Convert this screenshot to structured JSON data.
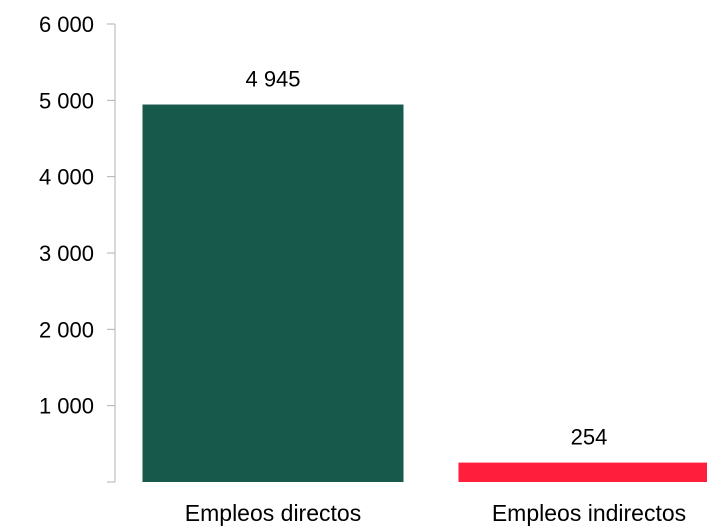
{
  "chart_data": {
    "type": "bar",
    "categories": [
      "Empleos directos",
      "Empleos indirectos"
    ],
    "values": [
      4945,
      254
    ],
    "data_labels": [
      "4 945",
      "254"
    ],
    "title": "",
    "xlabel": "",
    "ylabel": "",
    "ylim": [
      0,
      6000
    ],
    "y_ticks": [
      1000,
      2000,
      3000,
      4000,
      5000,
      6000
    ],
    "y_tick_labels": [
      "1 000",
      "2 000",
      "3 000",
      "4 000",
      "5 000",
      "6 000"
    ],
    "grid": false,
    "legend": "none",
    "colors": [
      "#17594a",
      "#ff1f3d"
    ]
  }
}
